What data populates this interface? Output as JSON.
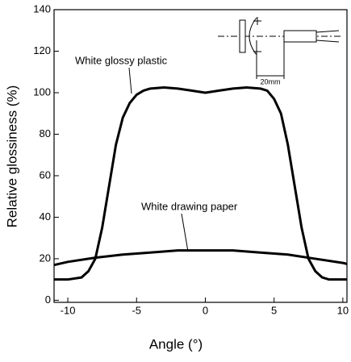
{
  "chart_data": {
    "type": "line",
    "xlabel": "Angle (°)",
    "ylabel": "Relative glossiness (%)",
    "xlim": [
      -11,
      10.3
    ],
    "ylim": [
      -1,
      140
    ],
    "xticks": [
      -10,
      -5,
      0,
      5,
      10
    ],
    "yticks": [
      0,
      20,
      40,
      60,
      80,
      100,
      120,
      140
    ],
    "series": [
      {
        "name": "White glossy plastic",
        "color": "#000000",
        "x": [
          -11,
          -10,
          -9,
          -8.5,
          -8,
          -7.5,
          -7,
          -6.5,
          -6,
          -5.5,
          -5,
          -4.5,
          -4,
          -3,
          -2,
          -1,
          0,
          1,
          2,
          3,
          4,
          4.5,
          5,
          5.5,
          6,
          6.5,
          7,
          7.5,
          8,
          8.5,
          9,
          10,
          10.3
        ],
        "values": [
          10,
          10,
          11,
          14,
          20,
          35,
          55,
          75,
          88,
          95,
          99,
          101,
          102,
          102.5,
          102,
          101,
          100,
          101,
          102,
          102.5,
          102,
          101,
          97,
          90,
          75,
          55,
          35,
          20,
          14,
          11,
          10,
          10,
          10
        ]
      },
      {
        "name": "White drawing paper",
        "color": "#000000",
        "x": [
          -11,
          -10,
          -8,
          -6,
          -4,
          -2,
          0,
          2,
          4,
          6,
          8,
          10,
          10.3
        ],
        "values": [
          17,
          18.5,
          20.5,
          22,
          23,
          24,
          24,
          24,
          23,
          22,
          20,
          18,
          17.5
        ]
      }
    ],
    "annotations": [
      "20mm"
    ]
  }
}
